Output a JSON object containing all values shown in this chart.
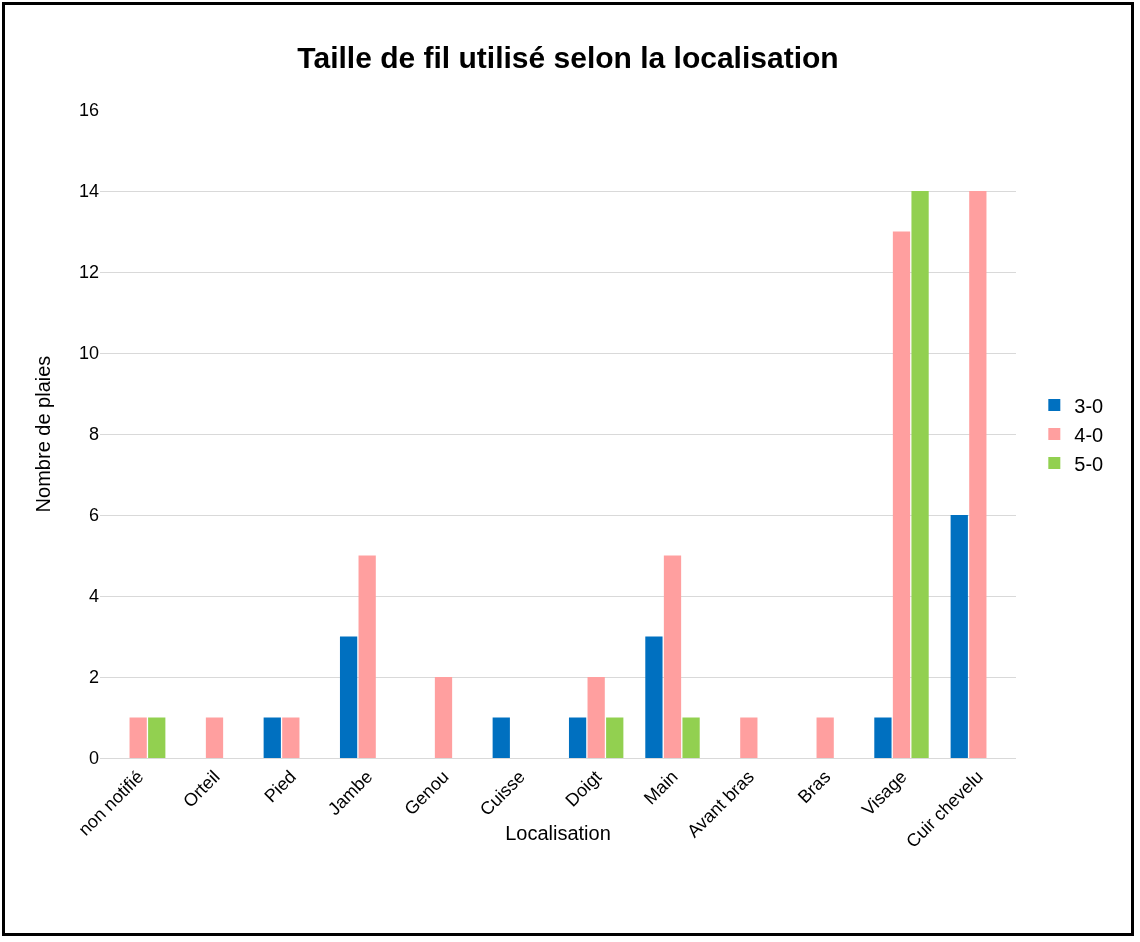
{
  "chart_data": {
    "type": "bar",
    "title": "Taille de fil utilisé selon la localisation",
    "xlabel": "Localisation",
    "ylabel": "Nombre de plaies",
    "categories": [
      "non notifié",
      "Orteil",
      "Pied",
      "Jambe",
      "Genou",
      "Cuisse",
      "Doigt",
      "Main",
      "Avant bras",
      "Bras",
      "Visage",
      "Cuir chevelu"
    ],
    "series": [
      {
        "name": "3-0",
        "color": "#0070c0",
        "values": [
          0,
          0,
          1,
          3,
          0,
          1,
          1,
          3,
          0,
          0,
          1,
          6
        ]
      },
      {
        "name": "4-0",
        "color": "#ff9f9f",
        "values": [
          1,
          1,
          1,
          5,
          2,
          0,
          2,
          5,
          1,
          1,
          13,
          14
        ]
      },
      {
        "name": "5-0",
        "color": "#92d050",
        "values": [
          1,
          0,
          0,
          0,
          0,
          0,
          1,
          1,
          0,
          0,
          14,
          0
        ]
      }
    ],
    "ylim": [
      0,
      16
    ],
    "yticks": [
      0,
      2,
      4,
      6,
      8,
      10,
      12,
      14,
      16
    ],
    "grid": "y",
    "legend": "right"
  }
}
